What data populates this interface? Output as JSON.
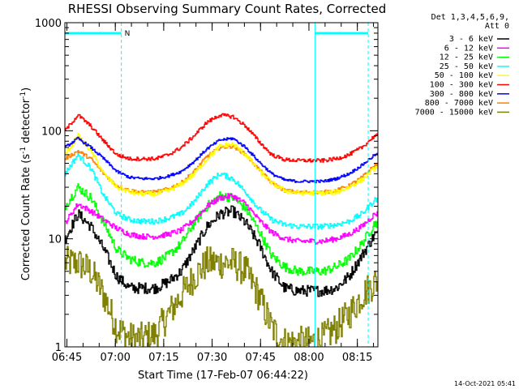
{
  "chart_data": {
    "type": "line",
    "title": "RHESSI Observing Summary Count Rates, Corrected",
    "xlabel": "Start Time (17-Feb-07 06:44:22)",
    "ylabel": "Corrected Count Rate (s⁻¹ detector⁻¹)",
    "ylabel_main": "Corrected Count Rate (s",
    "ylabel_sup1": "-1",
    "ylabel_mid": " detector",
    "ylabel_sup2": "-1",
    "ylabel_end": ")",
    "yscale": "log",
    "ylim": [
      1,
      1000
    ],
    "xlim_minutes": [
      0,
      97
    ],
    "xticks": [
      {
        "label": "06:45",
        "minutes": 0.63
      },
      {
        "label": "07:00",
        "minutes": 15.63
      },
      {
        "label": "07:15",
        "minutes": 30.63
      },
      {
        "label": "07:30",
        "minutes": 45.63
      },
      {
        "label": "07:45",
        "minutes": 60.63
      },
      {
        "label": "08:00",
        "minutes": 75.63
      },
      {
        "label": "08:15",
        "minutes": 90.63
      }
    ],
    "yticks": [
      {
        "label": "1",
        "value": 1
      },
      {
        "label": "10",
        "value": 10
      },
      {
        "label": "100",
        "value": 100
      },
      {
        "label": "1000",
        "value": 1000
      }
    ],
    "legend_header": [
      "Det 1,3,4,5,6,9,",
      "Att 0"
    ],
    "legend_position": "top-right",
    "markers": {
      "night_label": "N",
      "night_bars": [
        {
          "start_min": 0,
          "end_min": 17.5
        },
        {
          "start_min": 77.5,
          "end_min": 94
        }
      ],
      "dashed_lines_min": [
        17.5,
        94
      ],
      "solid_lines_min": [
        0,
        77.5
      ]
    },
    "x_minutes": [
      0,
      4,
      8,
      12,
      16,
      20,
      24,
      28,
      32,
      36,
      40,
      44,
      48,
      52,
      56,
      60,
      64,
      68,
      72,
      76,
      80,
      84,
      88,
      92,
      96
    ],
    "series": [
      {
        "name": "3 - 6 keV",
        "color": "#000000",
        "noise": 0.12,
        "values": [
          10,
          17,
          13,
          8,
          4.5,
          3.5,
          3.5,
          3.5,
          4,
          5,
          8,
          13,
          17,
          18,
          14,
          9,
          5,
          3.5,
          3.3,
          3.3,
          3.3,
          3.5,
          4.5,
          7,
          11
        ]
      },
      {
        "name": "6 - 12 keV",
        "color": "#ff00ff",
        "noise": 0.06,
        "values": [
          14,
          21,
          18,
          15,
          12.5,
          11,
          10.5,
          10.5,
          11,
          12,
          15,
          20,
          24,
          25,
          21,
          15,
          11.5,
          10,
          9.5,
          9.5,
          9.5,
          10,
          11,
          13,
          17
        ]
      },
      {
        "name": "12 - 25 keV",
        "color": "#00ff00",
        "noise": 0.1,
        "values": [
          20,
          30,
          24,
          14,
          8,
          6.5,
          6,
          6,
          7,
          9,
          14,
          20,
          25,
          24,
          19,
          12,
          7,
          5.5,
          5,
          5,
          5,
          5.5,
          6.5,
          9,
          14
        ]
      },
      {
        "name": "25 - 50 keV",
        "color": "#00ffff",
        "noise": 0.06,
        "values": [
          40,
          60,
          45,
          25,
          17,
          15,
          14.5,
          14.5,
          15.5,
          17,
          22,
          32,
          40,
          36,
          27,
          19,
          15,
          13.5,
          13,
          13,
          13,
          13.5,
          14.5,
          17,
          23
        ]
      },
      {
        "name": "50 - 100 keV",
        "color": "#ffff00",
        "noise": 0.05,
        "values": [
          60,
          90,
          65,
          40,
          30,
          27,
          26,
          26,
          28,
          32,
          40,
          55,
          72,
          75,
          60,
          43,
          33,
          28,
          26.5,
          26.5,
          26.5,
          27,
          30,
          35,
          45
        ]
      },
      {
        "name": "100 - 300 keV",
        "color": "#ff0000",
        "noise": 0.04,
        "values": [
          100,
          140,
          110,
          80,
          60,
          55,
          55,
          55,
          60,
          70,
          90,
          120,
          140,
          135,
          110,
          80,
          60,
          54,
          53,
          53,
          53,
          55,
          60,
          70,
          90
        ]
      },
      {
        "name": "300 - 800 keV",
        "color": "#0000ff",
        "noise": 0.03,
        "values": [
          70,
          85,
          70,
          55,
          42,
          37,
          36,
          36,
          38,
          42,
          52,
          68,
          82,
          85,
          70,
          52,
          40,
          35,
          34,
          34,
          34,
          36,
          40,
          48,
          60
        ]
      },
      {
        "name": "800 - 7000 keV",
        "color": "#ff8000",
        "noise": 0.04,
        "values": [
          55,
          65,
          55,
          40,
          31,
          28,
          27,
          27,
          29,
          33,
          42,
          58,
          70,
          72,
          60,
          44,
          33,
          28,
          27,
          27,
          27,
          28,
          31,
          37,
          48
        ]
      },
      {
        "name": "7000 - 15000 keV",
        "color": "#808000",
        "noise": 0.35,
        "values": [
          6,
          6,
          5,
          3,
          1.5,
          1.2,
          1.2,
          1.3,
          2,
          3,
          4.5,
          6,
          6,
          6,
          5,
          3,
          1.5,
          1.1,
          1.1,
          1.1,
          1.2,
          1.5,
          2,
          3,
          4
        ]
      }
    ]
  },
  "footer_timestamp": "14-Oct-2021 05:41"
}
